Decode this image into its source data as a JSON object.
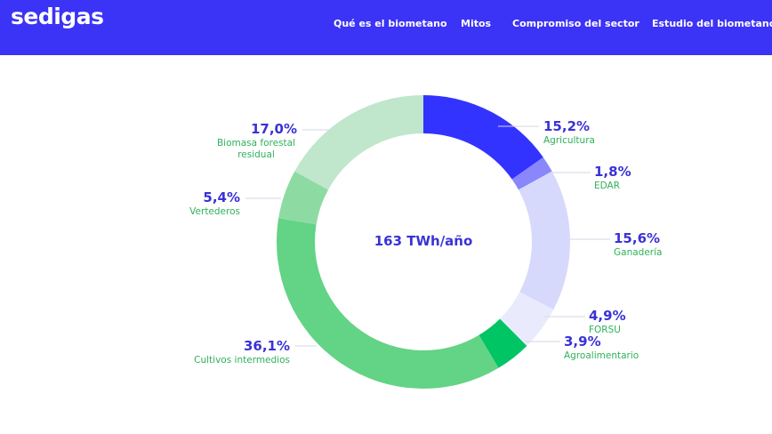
{
  "header": {
    "logo": "sedigas",
    "nav": [
      "Qué es el biometano",
      "Mitos",
      "Compromiso del sector",
      "Estudio del biometano"
    ]
  },
  "chart_data": {
    "type": "donut",
    "center_label": "163 TWh/año",
    "categories": [
      "Agricultura",
      "EDAR",
      "Ganadería",
      "FORSU",
      "Agroalimentario",
      "Cultivos intermedios",
      "Vertederos",
      "Biomasa forestal residual"
    ],
    "values": [
      15.2,
      1.8,
      15.6,
      4.9,
      3.9,
      36.1,
      5.4,
      17.0
    ],
    "value_labels": [
      "15,2%",
      "1,8%",
      "15,6%",
      "4,9%",
      "3,9%",
      "36,1%",
      "5,4%",
      "17,0%"
    ],
    "colors": [
      "#3333ff",
      "#8a86fb",
      "#d6d9fb",
      "#e9ebfd",
      "#00c565",
      "#63d386",
      "#8ddba2",
      "#c0e6cb"
    ]
  }
}
